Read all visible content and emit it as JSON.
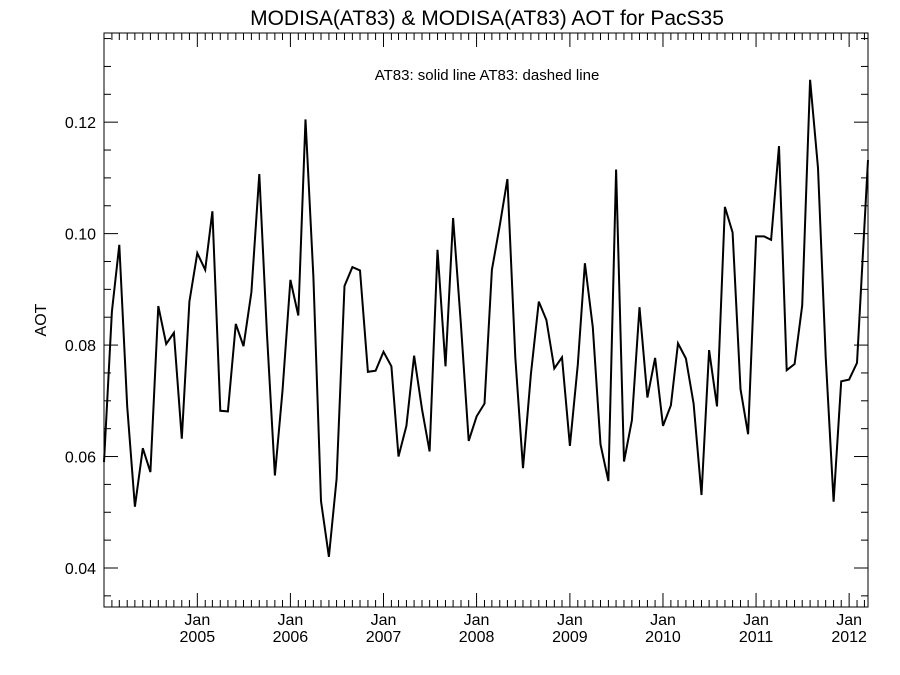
{
  "chart_data": {
    "type": "line",
    "title": "MODISA(AT83) & MODISA(AT83)  AOT for PacS35",
    "legend_text": "AT83: solid line   AT83: dashed line",
    "legend_placement": "top-center",
    "xlabel": "",
    "ylabel": "AOT",
    "grid": false,
    "xlim": [
      "2004-01-01",
      "2012-03-15"
    ],
    "ylim": [
      0.033,
      0.136
    ],
    "y_ticks": [
      0.04,
      0.06,
      0.08,
      0.1,
      0.12
    ],
    "y_tick_labels": [
      "0.04",
      "0.06",
      "0.08",
      "0.10",
      "0.12"
    ],
    "x_ticks": [
      {
        "date": "2005-01-01",
        "month": "Jan",
        "year": "2005"
      },
      {
        "date": "2006-01-01",
        "month": "Jan",
        "year": "2006"
      },
      {
        "date": "2007-01-01",
        "month": "Jan",
        "year": "2007"
      },
      {
        "date": "2008-01-01",
        "month": "Jan",
        "year": "2008"
      },
      {
        "date": "2009-01-01",
        "month": "Jan",
        "year": "2009"
      },
      {
        "date": "2010-01-01",
        "month": "Jan",
        "year": "2010"
      },
      {
        "date": "2011-01-01",
        "month": "Jan",
        "year": "2011"
      },
      {
        "date": "2012-01-01",
        "month": "Jan",
        "year": "2012"
      }
    ],
    "series": [
      {
        "style": "solid",
        "color": "#000000",
        "points": [
          [
            "2004-01-01",
            0.059
          ],
          [
            "2004-02-01",
            0.086
          ],
          [
            "2004-03-01",
            0.098
          ],
          [
            "2004-04-01",
            0.069
          ],
          [
            "2004-05-01",
            0.051
          ],
          [
            "2004-06-01",
            0.0615
          ],
          [
            "2004-07-01",
            0.0572
          ],
          [
            "2004-08-01",
            0.087
          ],
          [
            "2004-09-01",
            0.0802
          ],
          [
            "2004-10-01",
            0.0822
          ],
          [
            "2004-11-01",
            0.0632
          ],
          [
            "2004-12-01",
            0.0878
          ],
          [
            "2005-01-01",
            0.0965
          ],
          [
            "2005-02-01",
            0.0935
          ],
          [
            "2005-03-01",
            0.104
          ],
          [
            "2005-04-01",
            0.0682
          ],
          [
            "2005-05-01",
            0.0681
          ],
          [
            "2005-06-01",
            0.0838
          ],
          [
            "2005-07-01",
            0.0798
          ],
          [
            "2005-08-01",
            0.0895
          ],
          [
            "2005-09-01",
            0.1107
          ],
          [
            "2005-10-01",
            0.0822
          ],
          [
            "2005-11-01",
            0.0566
          ],
          [
            "2005-12-01",
            0.0718
          ],
          [
            "2006-01-01",
            0.0917
          ],
          [
            "2006-02-01",
            0.0853
          ],
          [
            "2006-03-01",
            0.1205
          ],
          [
            "2006-04-01",
            0.0922
          ],
          [
            "2006-05-01",
            0.052
          ],
          [
            "2006-06-01",
            0.042
          ],
          [
            "2006-07-01",
            0.056
          ],
          [
            "2006-08-01",
            0.0906
          ],
          [
            "2006-09-01",
            0.094
          ],
          [
            "2006-10-01",
            0.0934
          ],
          [
            "2006-11-01",
            0.0752
          ],
          [
            "2006-12-01",
            0.0754
          ],
          [
            "2007-01-01",
            0.0788
          ],
          [
            "2007-02-01",
            0.0762
          ],
          [
            "2007-03-01",
            0.06
          ],
          [
            "2007-04-01",
            0.0655
          ],
          [
            "2007-05-01",
            0.0781
          ],
          [
            "2007-06-01",
            0.0685
          ],
          [
            "2007-07-01",
            0.0609
          ],
          [
            "2007-08-01",
            0.0971
          ],
          [
            "2007-09-01",
            0.0762
          ],
          [
            "2007-10-01",
            0.1028
          ],
          [
            "2007-11-01",
            0.0835
          ],
          [
            "2007-12-01",
            0.0628
          ],
          [
            "2008-01-01",
            0.0672
          ],
          [
            "2008-02-01",
            0.0695
          ],
          [
            "2008-03-01",
            0.0935
          ],
          [
            "2008-04-01",
            0.1015
          ],
          [
            "2008-05-01",
            0.1098
          ],
          [
            "2008-06-01",
            0.0778
          ],
          [
            "2008-07-01",
            0.0579
          ],
          [
            "2008-08-01",
            0.0748
          ],
          [
            "2008-09-01",
            0.0878
          ],
          [
            "2008-10-01",
            0.0845
          ],
          [
            "2008-11-01",
            0.0758
          ],
          [
            "2008-12-01",
            0.0778
          ],
          [
            "2009-01-01",
            0.0619
          ],
          [
            "2009-02-01",
            0.0765
          ],
          [
            "2009-03-01",
            0.0947
          ],
          [
            "2009-04-01",
            0.0832
          ],
          [
            "2009-05-01",
            0.0622
          ],
          [
            "2009-06-01",
            0.0556
          ],
          [
            "2009-07-01",
            0.1115
          ],
          [
            "2009-08-01",
            0.0591
          ],
          [
            "2009-09-01",
            0.0665
          ],
          [
            "2009-10-01",
            0.0868
          ],
          [
            "2009-11-01",
            0.0706
          ],
          [
            "2009-12-01",
            0.0777
          ],
          [
            "2010-01-01",
            0.0655
          ],
          [
            "2010-02-01",
            0.0692
          ],
          [
            "2010-03-01",
            0.0803
          ],
          [
            "2010-04-01",
            0.0776
          ],
          [
            "2010-05-01",
            0.0695
          ],
          [
            "2010-06-01",
            0.0531
          ],
          [
            "2010-07-01",
            0.0791
          ],
          [
            "2010-08-01",
            0.069
          ],
          [
            "2010-09-01",
            0.1048
          ],
          [
            "2010-10-01",
            0.1002
          ],
          [
            "2010-11-01",
            0.0721
          ],
          [
            "2010-12-01",
            0.064
          ],
          [
            "2011-01-01",
            0.0995
          ],
          [
            "2011-02-01",
            0.0995
          ],
          [
            "2011-03-01",
            0.0989
          ],
          [
            "2011-04-01",
            0.1157
          ],
          [
            "2011-05-01",
            0.0755
          ],
          [
            "2011-06-01",
            0.0766
          ],
          [
            "2011-07-01",
            0.0871
          ],
          [
            "2011-08-01",
            0.1276
          ],
          [
            "2011-09-01",
            0.1118
          ],
          [
            "2011-10-01",
            0.0779
          ],
          [
            "2011-11-01",
            0.0519
          ],
          [
            "2011-12-01",
            0.0735
          ],
          [
            "2012-01-01",
            0.0738
          ],
          [
            "2012-02-01",
            0.0768
          ],
          [
            "2012-03-15",
            0.1132
          ]
        ]
      }
    ]
  }
}
